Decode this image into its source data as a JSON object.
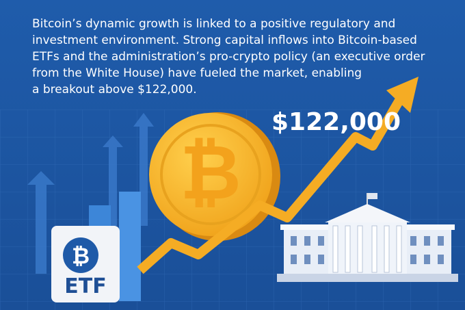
{
  "text": {
    "lines": [
      "Bitcoin’s dynamic growth is linked to a positive regulatory and",
      "investment environment. Strong capital inflows into Bitcoin-based",
      "ETFs and the administration’s pro-crypto policy (an executive order",
      "from the White House) have fueled the market, enabling",
      "a breakout above $122,000."
    ]
  },
  "price_label": "$122,000",
  "coin_symbol": "₿",
  "etf_card": {
    "label": "ETF"
  }
}
